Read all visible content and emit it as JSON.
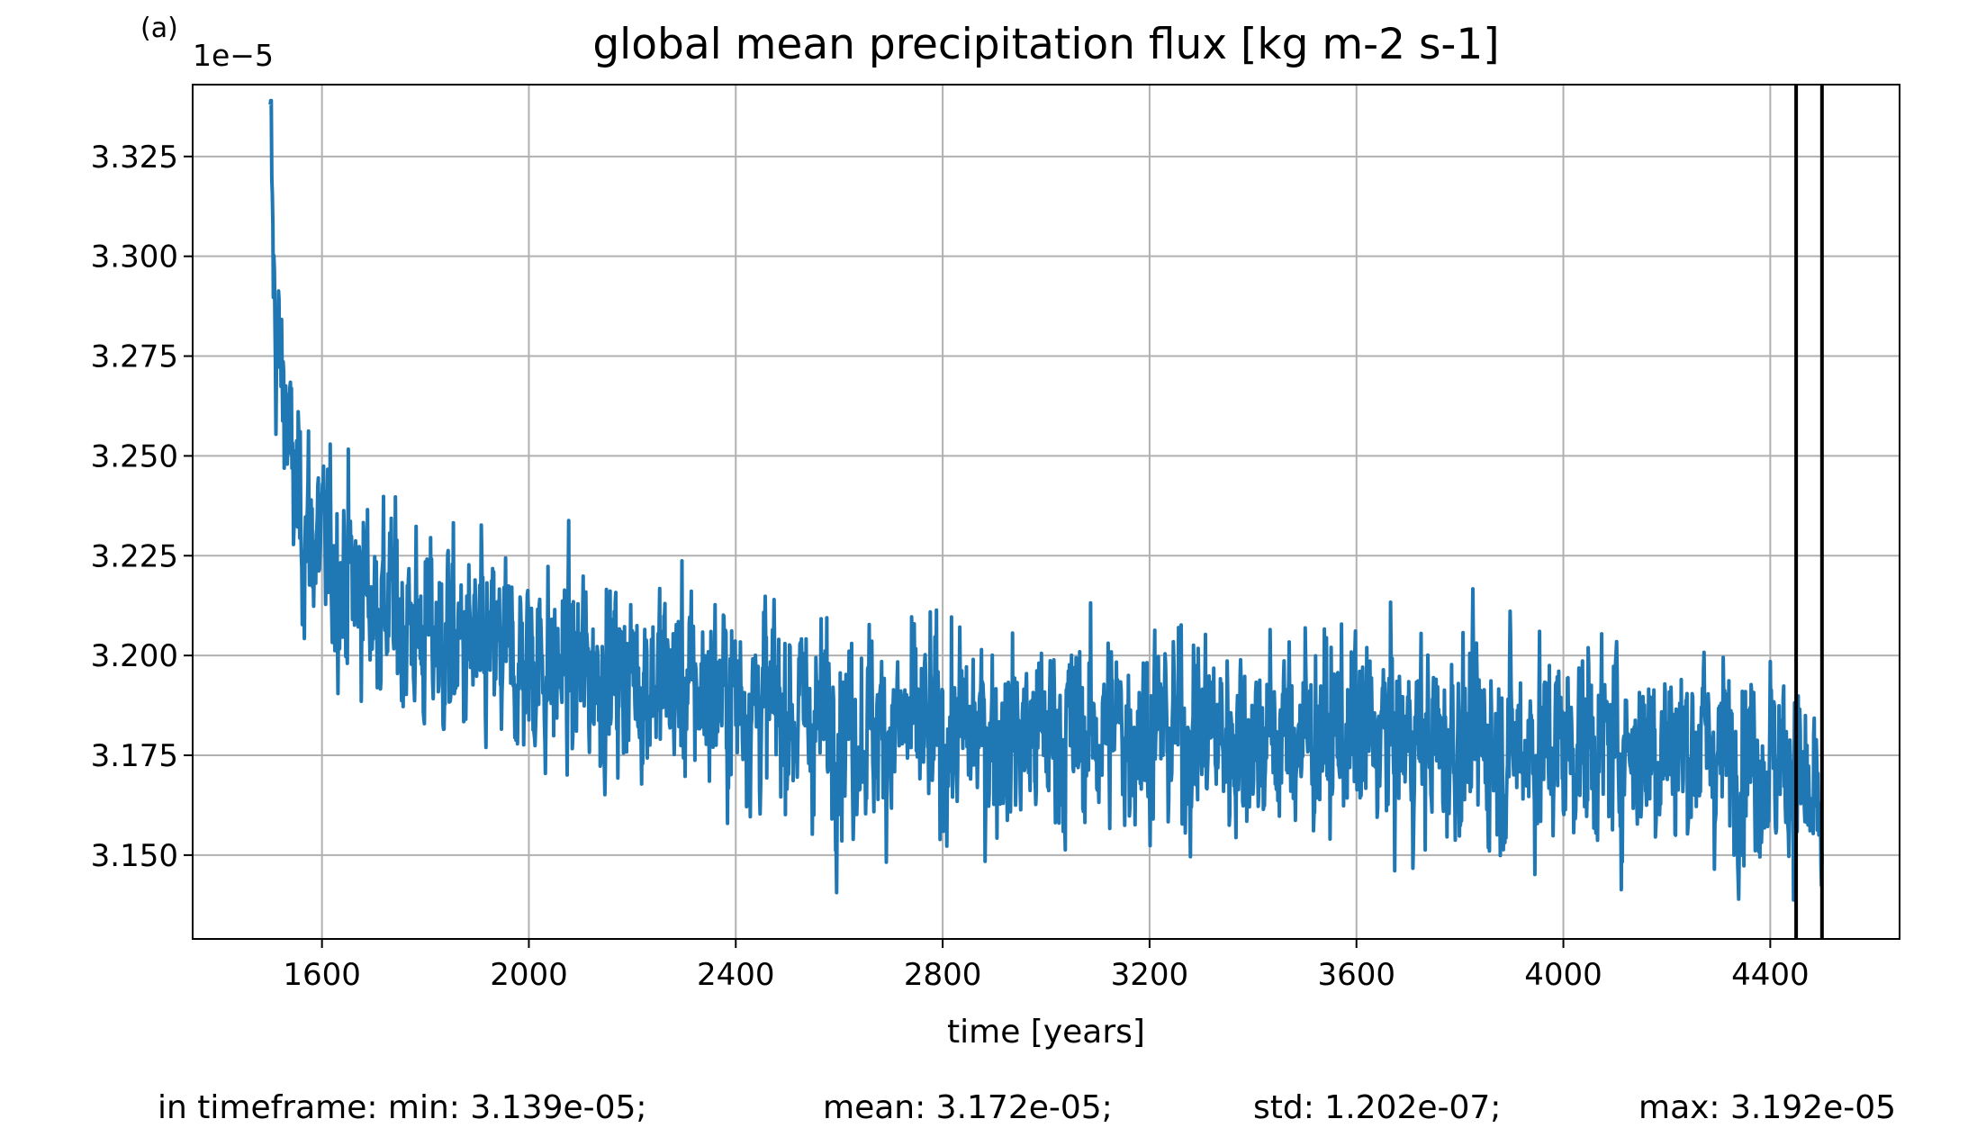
{
  "panel_label": "(a)",
  "offset_text": "1e−5",
  "colors": {
    "series": "#1f77b4",
    "grid": "#b0b0b0",
    "markers": "#000000"
  },
  "stats": {
    "min": "in timeframe: min: 3.139e-05;",
    "mean": "mean: 3.172e-05;",
    "std": "std: 1.202e-07;",
    "max": "max: 3.192e-05"
  },
  "chart_data": {
    "type": "line",
    "title": "global mean precipitation flux [kg m-2 s-1]",
    "xlabel": "time [years]",
    "ylabel": "",
    "xlim": [
      1350,
      4650
    ],
    "ylim": [
      3.129,
      3.343
    ],
    "y_scale_factor": "1e-5",
    "xticks": [
      1600,
      2000,
      2400,
      2800,
      3200,
      3600,
      4000,
      4400
    ],
    "yticks": [
      3.15,
      3.175,
      3.2,
      3.225,
      3.25,
      3.275,
      3.3,
      3.325
    ],
    "ytick_labels": [
      "3.150",
      "3.175",
      "3.200",
      "3.225",
      "3.250",
      "3.275",
      "3.300",
      "3.325"
    ],
    "grid": true,
    "vertical_lines": [
      4450,
      4500
    ],
    "series": [
      {
        "style": "noisy decaying time series, 1 point per year",
        "x_start": 1500,
        "x_end": 4500,
        "initial_value": 3.338,
        "equilibrium_value": 3.181,
        "noise_std": 0.012,
        "anchors": [
          [
            1500,
            3.338
          ],
          [
            1505,
            3.3
          ],
          [
            1510,
            3.28
          ],
          [
            1520,
            3.27
          ],
          [
            1530,
            3.265
          ],
          [
            1540,
            3.245
          ],
          [
            1560,
            3.235
          ],
          [
            1600,
            3.225
          ],
          [
            1650,
            3.22
          ],
          [
            1700,
            3.215
          ],
          [
            1800,
            3.205
          ],
          [
            1900,
            3.2
          ],
          [
            2000,
            3.198
          ],
          [
            2200,
            3.195
          ],
          [
            2400,
            3.19
          ],
          [
            2600,
            3.183
          ],
          [
            2800,
            3.18
          ],
          [
            3000,
            3.18
          ],
          [
            3200,
            3.182
          ],
          [
            3400,
            3.18
          ],
          [
            3600,
            3.18
          ],
          [
            3800,
            3.178
          ],
          [
            4000,
            3.178
          ],
          [
            4200,
            3.178
          ],
          [
            4400,
            3.175
          ],
          [
            4450,
            3.172
          ],
          [
            4500,
            3.152
          ]
        ]
      }
    ]
  }
}
